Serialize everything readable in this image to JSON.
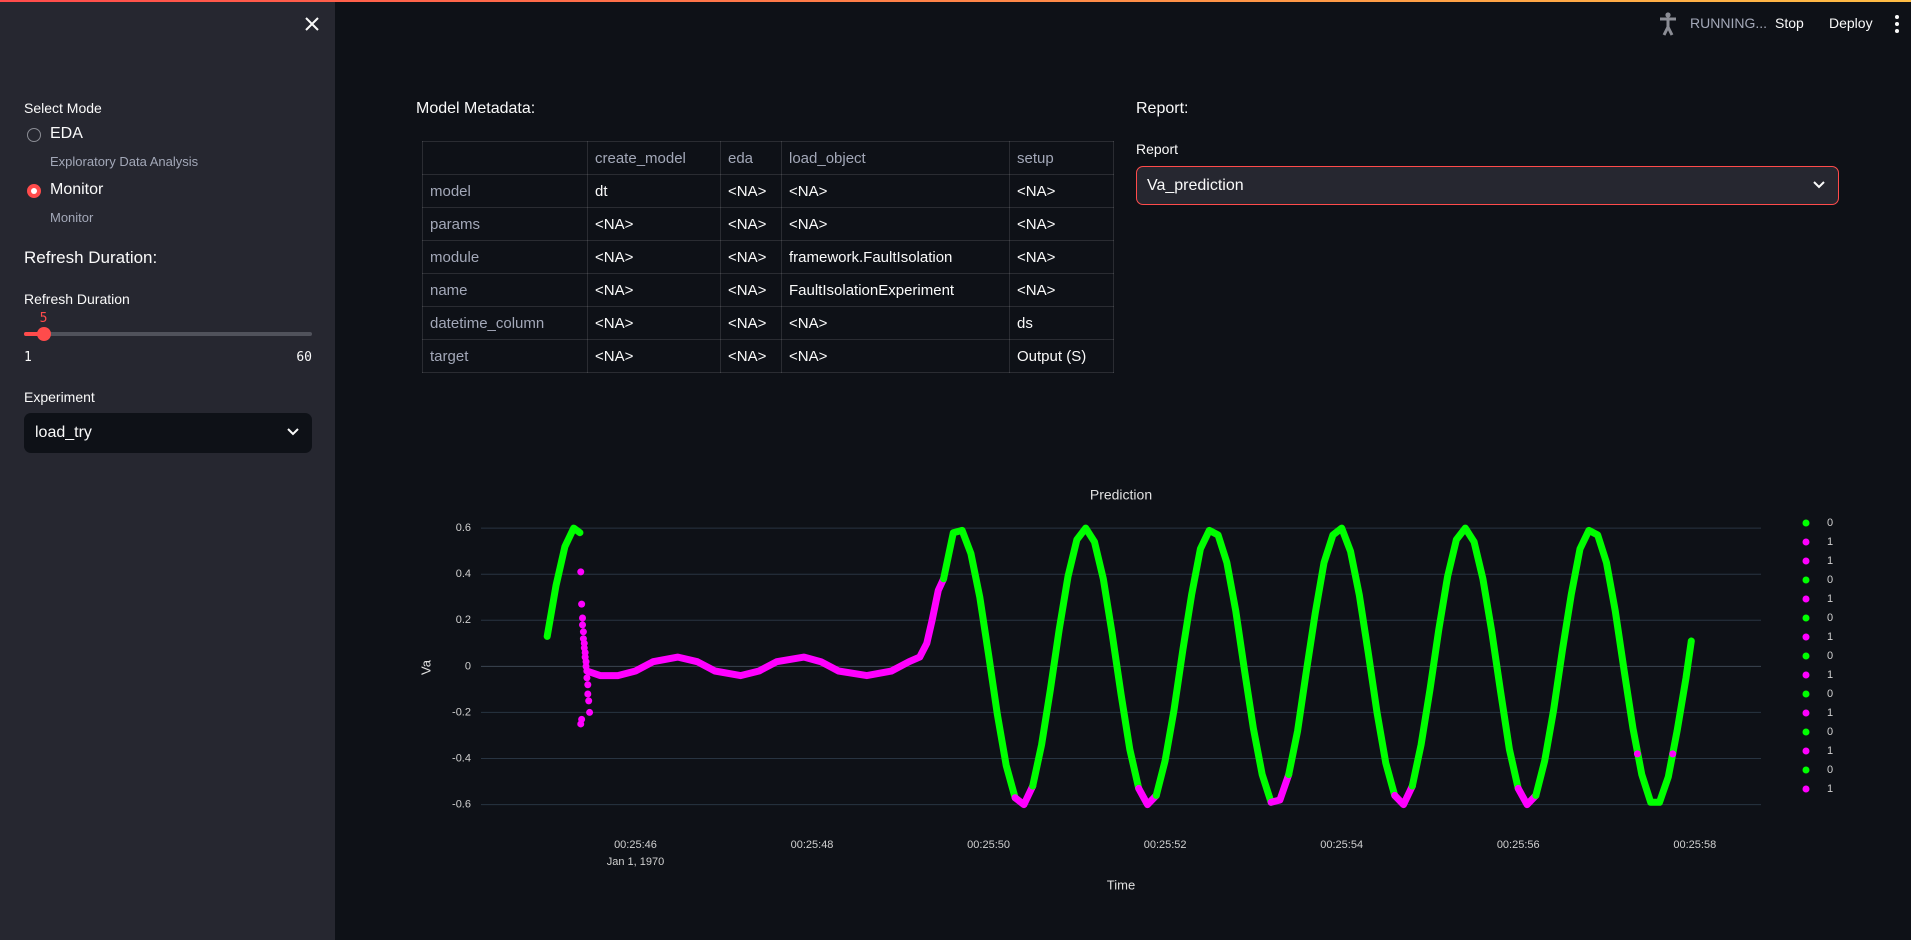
{
  "header": {
    "status": "RUNNING...",
    "stop": "Stop",
    "deploy": "Deploy"
  },
  "sidebar": {
    "mode_label": "Select Mode",
    "modes": [
      {
        "label": "EDA",
        "caption": "Exploratory Data Analysis",
        "selected": false
      },
      {
        "label": "Monitor",
        "caption": "Monitor",
        "selected": true
      }
    ],
    "refresh_heading": "Refresh Duration:",
    "slider": {
      "label": "Refresh Duration",
      "value": 5,
      "min": 1,
      "max": 60
    },
    "experiment": {
      "label": "Experiment",
      "value": "load_try"
    }
  },
  "metadata": {
    "title": "Model Metadata:",
    "columns": [
      "create_model",
      "eda",
      "load_object",
      "setup"
    ],
    "rows": [
      {
        "name": "model",
        "cells": [
          "dt",
          "<NA>",
          "<NA>",
          "<NA>"
        ]
      },
      {
        "name": "params",
        "cells": [
          "<NA>",
          "<NA>",
          "<NA>",
          "<NA>"
        ]
      },
      {
        "name": "module",
        "cells": [
          "<NA>",
          "<NA>",
          "framework.FaultIsolation",
          "<NA>"
        ]
      },
      {
        "name": "name",
        "cells": [
          "<NA>",
          "<NA>",
          "FaultIsolationExperiment",
          "<NA>"
        ]
      },
      {
        "name": "datetime_column",
        "cells": [
          "<NA>",
          "<NA>",
          "<NA>",
          "ds"
        ]
      },
      {
        "name": "target",
        "cells": [
          "<NA>",
          "<NA>",
          "<NA>",
          "Output (S)"
        ]
      }
    ]
  },
  "report": {
    "title": "Report:",
    "label": "Report",
    "value": "Va_prediction"
  },
  "chart_data": {
    "type": "scatter",
    "title": "Prediction",
    "x_label": "Time",
    "y_label": "Va",
    "date_label": "Jan 1, 1970",
    "xlim": [
      44.25,
      58.75
    ],
    "ylim": [
      -0.68,
      0.67
    ],
    "xticks": [
      {
        "value": 46,
        "label": "00:25:46"
      },
      {
        "value": 48,
        "label": "00:25:48"
      },
      {
        "value": 50,
        "label": "00:25:50"
      },
      {
        "value": 52,
        "label": "00:25:52"
      },
      {
        "value": 54,
        "label": "00:25:54"
      },
      {
        "value": 56,
        "label": "00:25:56"
      },
      {
        "value": 58,
        "label": "00:25:58"
      }
    ],
    "yticks": [
      -0.6,
      -0.4,
      -0.2,
      0,
      0.2,
      0.4,
      0.6
    ],
    "grid": true,
    "legend": "right",
    "series": [
      {
        "name": "0",
        "color": "#00ff00",
        "mode": "lines",
        "x": [
          45.0,
          45.1,
          45.2,
          45.3,
          45.37
        ],
        "values": [
          0.13,
          0.35,
          0.52,
          0.6,
          0.58
        ]
      },
      {
        "name": "1",
        "color": "#ff00ff",
        "mode": "markers",
        "x": [
          45.38,
          45.39,
          45.4,
          45.4,
          45.41,
          45.41,
          45.42,
          45.42,
          45.43,
          45.43,
          45.44,
          45.44,
          45.45,
          45.45,
          45.46,
          45.46,
          45.47,
          45.48,
          45.39,
          45.38
        ],
        "values": [
          0.41,
          0.27,
          0.21,
          0.18,
          0.15,
          0.12,
          0.1,
          0.08,
          0.06,
          0.04,
          0.02,
          0,
          -0.02,
          -0.05,
          -0.08,
          -0.12,
          -0.15,
          -0.2,
          -0.23,
          -0.25
        ]
      },
      {
        "name": "1",
        "color": "#ff00ff",
        "mode": "lines",
        "x": [
          45.45,
          45.6,
          45.8,
          46.0,
          46.2,
          46.48,
          46.7,
          46.9,
          47.19,
          47.4,
          47.6,
          47.91,
          48.1,
          48.3,
          48.62,
          48.9,
          49.1,
          49.22,
          49.3,
          49.36,
          49.43,
          49.49
        ],
        "values": [
          -0.02,
          -0.04,
          -0.04,
          -0.02,
          0.02,
          0.04,
          0.02,
          -0.02,
          -0.04,
          -0.02,
          0.02,
          0.04,
          0.02,
          -0.02,
          -0.04,
          -0.02,
          0.02,
          0.04,
          0.1,
          0.2,
          0.33,
          0.38
        ]
      },
      {
        "name": "0",
        "color": "#00ff00",
        "mode": "lines",
        "x": [
          49.49,
          49.6,
          49.7,
          49.8,
          49.9,
          50.0,
          50.1,
          50.2,
          50.3
        ],
        "values": [
          0.38,
          0.58,
          0.59,
          0.49,
          0.3,
          0.05,
          -0.21,
          -0.43,
          -0.57
        ]
      },
      {
        "name": "1",
        "color": "#ff00ff",
        "mode": "lines",
        "x": [
          50.3,
          50.4,
          50.5
        ],
        "values": [
          -0.57,
          -0.6,
          -0.52
        ]
      },
      {
        "name": "0",
        "color": "#00ff00",
        "mode": "lines",
        "x": [
          50.5,
          50.6,
          50.7,
          50.8,
          50.9,
          51.0,
          51.1,
          51.2,
          51.3,
          51.4,
          51.5,
          51.6,
          51.7
        ],
        "values": [
          -0.52,
          -0.34,
          -0.1,
          0.16,
          0.39,
          0.55,
          0.6,
          0.54,
          0.38,
          0.14,
          -0.12,
          -0.36,
          -0.53
        ]
      },
      {
        "name": "1",
        "color": "#ff00ff",
        "mode": "lines",
        "x": [
          51.7,
          51.8,
          51.9
        ],
        "values": [
          -0.53,
          -0.6,
          -0.56
        ]
      },
      {
        "name": "0",
        "color": "#00ff00",
        "mode": "lines",
        "x": [
          51.9,
          52.0,
          52.1,
          52.2,
          52.3,
          52.4,
          52.5,
          52.6,
          52.7,
          52.8,
          52.9,
          53.0,
          53.1,
          53.2
        ],
        "values": [
          -0.56,
          -0.41,
          -0.19,
          0.07,
          0.31,
          0.51,
          0.59,
          0.57,
          0.45,
          0.24,
          -0.02,
          -0.27,
          -0.47,
          -0.59
        ]
      },
      {
        "name": "1",
        "color": "#ff00ff",
        "mode": "lines",
        "x": [
          53.2,
          53.3,
          53.4
        ],
        "values": [
          -0.59,
          -0.58,
          -0.47
        ]
      },
      {
        "name": "0",
        "color": "#00ff00",
        "mode": "lines",
        "x": [
          53.4,
          53.5,
          53.6,
          53.7,
          53.8,
          53.9,
          54.0,
          54.1,
          54.2,
          54.3,
          54.4,
          54.5,
          54.6
        ],
        "values": [
          -0.47,
          -0.28,
          -0.02,
          0.23,
          0.45,
          0.57,
          0.6,
          0.5,
          0.31,
          0.06,
          -0.2,
          -0.42,
          -0.56
        ]
      },
      {
        "name": "1",
        "color": "#ff00ff",
        "mode": "lines",
        "x": [
          54.6,
          54.7,
          54.8
        ],
        "values": [
          -0.56,
          -0.6,
          -0.52
        ]
      },
      {
        "name": "0",
        "color": "#00ff00",
        "mode": "lines",
        "x": [
          54.8,
          54.9,
          55.0,
          55.1,
          55.2,
          55.3,
          55.4,
          55.5,
          55.6,
          55.7,
          55.8,
          55.9,
          56.0
        ],
        "values": [
          -0.52,
          -0.34,
          -0.1,
          0.16,
          0.39,
          0.55,
          0.6,
          0.54,
          0.38,
          0.15,
          -0.11,
          -0.36,
          -0.53
        ]
      },
      {
        "name": "1",
        "color": "#ff00ff",
        "mode": "lines",
        "x": [
          56.0,
          56.1,
          56.2
        ],
        "values": [
          -0.53,
          -0.6,
          -0.56
        ]
      },
      {
        "name": "0",
        "color": "#00ff00",
        "mode": "lines",
        "x": [
          56.2,
          56.3,
          56.4,
          56.5,
          56.6,
          56.7,
          56.8,
          56.9,
          57.0,
          57.1,
          57.2,
          57.3,
          57.4,
          57.5,
          57.6,
          57.7,
          57.8,
          57.9,
          57.96
        ],
        "values": [
          -0.56,
          -0.41,
          -0.19,
          0.07,
          0.31,
          0.51,
          0.59,
          0.57,
          0.45,
          0.24,
          -0.02,
          -0.27,
          -0.47,
          -0.59,
          -0.59,
          -0.48,
          -0.28,
          -0.05,
          0.11
        ]
      },
      {
        "name": "1",
        "color": "#ff00ff",
        "mode": "markers",
        "x": [
          57.35,
          57.75
        ],
        "values": [
          -0.38,
          -0.38
        ]
      }
    ]
  }
}
